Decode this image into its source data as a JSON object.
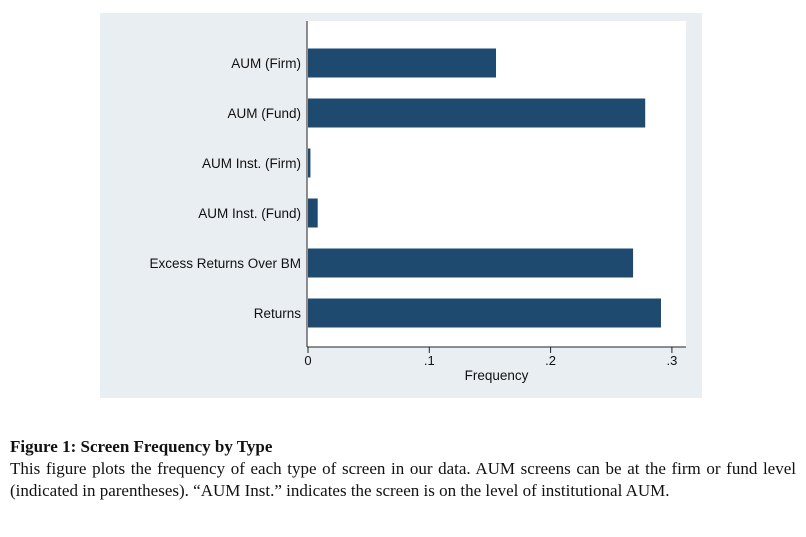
{
  "figure": {
    "caption_title": "Figure 1: Screen Frequency by Type",
    "caption_text": "This figure plots the frequency of each type of screen in our data. AUM screens can be at the firm or fund level (indicated in parentheses). “AUM Inst.” indicates the screen is on the level of institutional AUM."
  },
  "colors": {
    "bar": "#1f4a70",
    "panel_background": "#e9eef2",
    "plot_background": "#ffffff"
  },
  "chart_data": {
    "type": "bar",
    "orientation": "horizontal",
    "categories": [
      "AUM (Firm)",
      "AUM (Fund)",
      "AUM Inst. (Firm)",
      "AUM Inst. (Fund)",
      "Excess Returns Over BM",
      "Returns"
    ],
    "values": [
      0.155,
      0.278,
      0.002,
      0.008,
      0.268,
      0.291
    ],
    "xlabel": "Frequency",
    "ylabel": "",
    "xlim": [
      0,
      0.31
    ],
    "xticks": [
      0,
      0.1,
      0.2,
      0.3
    ],
    "xtick_labels": [
      "0",
      ".1",
      ".2",
      ".3"
    ],
    "grid": false,
    "legend": "none"
  }
}
